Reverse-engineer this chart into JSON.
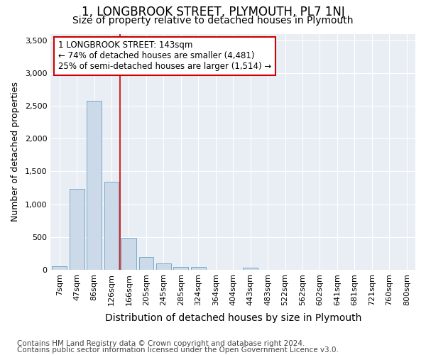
{
  "title": "1, LONGBROOK STREET, PLYMOUTH, PL7 1NJ",
  "subtitle": "Size of property relative to detached houses in Plymouth",
  "xlabel": "Distribution of detached houses by size in Plymouth",
  "ylabel": "Number of detached properties",
  "categories": [
    "7sqm",
    "47sqm",
    "86sqm",
    "126sqm",
    "166sqm",
    "205sqm",
    "245sqm",
    "285sqm",
    "324sqm",
    "364sqm",
    "404sqm",
    "443sqm",
    "483sqm",
    "522sqm",
    "562sqm",
    "602sqm",
    "641sqm",
    "681sqm",
    "721sqm",
    "760sqm",
    "800sqm"
  ],
  "values": [
    50,
    1230,
    2580,
    1340,
    490,
    190,
    100,
    45,
    45,
    0,
    0,
    35,
    0,
    0,
    0,
    0,
    0,
    0,
    0,
    0,
    0
  ],
  "bar_color": "#ccd9e8",
  "bar_edge_color": "#7aaac8",
  "red_line_x": 3.5,
  "annotation_line1": "1 LONGBROOK STREET: 143sqm",
  "annotation_line2": "← 74% of detached houses are smaller (4,481)",
  "annotation_line3": "25% of semi-detached houses are larger (1,514) →",
  "annotation_box_facecolor": "#ffffff",
  "annotation_box_edgecolor": "#cc0000",
  "ylim": [
    0,
    3600
  ],
  "yticks": [
    0,
    500,
    1000,
    1500,
    2000,
    2500,
    3000,
    3500
  ],
  "fig_background": "#ffffff",
  "plot_background": "#e8eef4",
  "grid_color": "#ffffff",
  "title_fontsize": 12,
  "subtitle_fontsize": 10,
  "xlabel_fontsize": 10,
  "ylabel_fontsize": 9,
  "tick_fontsize": 8,
  "annotation_fontsize": 8.5,
  "footer_fontsize": 7.5,
  "footer_line1": "Contains HM Land Registry data © Crown copyright and database right 2024.",
  "footer_line2": "Contains public sector information licensed under the Open Government Licence v3.0."
}
